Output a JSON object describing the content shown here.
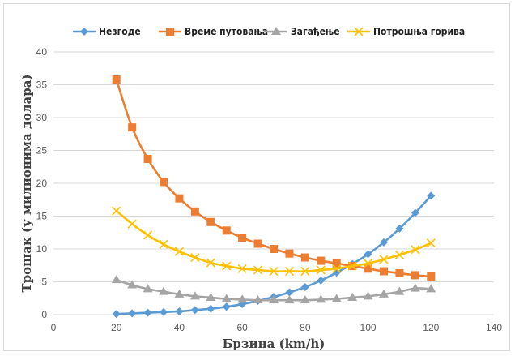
{
  "chart_data": {
    "type": "line",
    "xlabel": "Брзина (km/h)",
    "ylabel": "Трошак (у милионима долара)",
    "xlim": [
      0,
      140
    ],
    "ylim": [
      0,
      40
    ],
    "xticks": [
      0,
      20,
      40,
      60,
      80,
      100,
      120,
      140
    ],
    "yticks": [
      0,
      5,
      10,
      15,
      20,
      25,
      30,
      35,
      40
    ],
    "grid": "horizontal",
    "legend": "top",
    "series": [
      {
        "name": "Незгоде",
        "color": "#5b9bd5",
        "marker": "diamond",
        "x": [
          20,
          25,
          30,
          35,
          40,
          45,
          50,
          55,
          60,
          65,
          70,
          75,
          80,
          85,
          90,
          95,
          100,
          105,
          110,
          115,
          120
        ],
        "y": [
          0.1,
          0.2,
          0.3,
          0.4,
          0.5,
          0.7,
          0.9,
          1.2,
          1.6,
          2.1,
          2.7,
          3.4,
          4.2,
          5.2,
          6.4,
          7.7,
          9.2,
          11.0,
          13.1,
          15.5,
          18.1
        ]
      },
      {
        "name": "Време путовања",
        "color": "#ed7d31",
        "marker": "square",
        "x": [
          20,
          25,
          30,
          35,
          40,
          45,
          50,
          55,
          60,
          65,
          70,
          75,
          80,
          85,
          90,
          95,
          100,
          105,
          110,
          115,
          120
        ],
        "y": [
          35.8,
          28.5,
          23.7,
          20.2,
          17.7,
          15.7,
          14.1,
          12.8,
          11.7,
          10.8,
          10.0,
          9.3,
          8.7,
          8.2,
          7.8,
          7.4,
          7.0,
          6.6,
          6.3,
          6.0,
          5.8
        ]
      },
      {
        "name": "Загађење",
        "color": "#a5a5a5",
        "marker": "triangle",
        "x": [
          20,
          25,
          30,
          35,
          40,
          45,
          50,
          55,
          60,
          65,
          70,
          75,
          80,
          85,
          90,
          95,
          100,
          105,
          110,
          115,
          120
        ],
        "y": [
          5.3,
          4.5,
          3.9,
          3.5,
          3.1,
          2.8,
          2.6,
          2.4,
          2.3,
          2.2,
          2.2,
          2.2,
          2.2,
          2.3,
          2.4,
          2.6,
          2.8,
          3.1,
          3.5,
          4.0,
          3.9
        ]
      },
      {
        "name": "Потрошња горива",
        "color": "#ffc000",
        "marker": "x",
        "x": [
          20,
          25,
          30,
          35,
          40,
          45,
          50,
          55,
          60,
          65,
          70,
          75,
          80,
          85,
          90,
          95,
          100,
          105,
          110,
          115,
          120
        ],
        "y": [
          15.8,
          13.8,
          12.1,
          10.7,
          9.6,
          8.7,
          7.9,
          7.4,
          7.0,
          6.8,
          6.6,
          6.6,
          6.6,
          6.8,
          7.0,
          7.4,
          7.8,
          8.4,
          9.1,
          9.9,
          10.9
        ]
      }
    ]
  }
}
